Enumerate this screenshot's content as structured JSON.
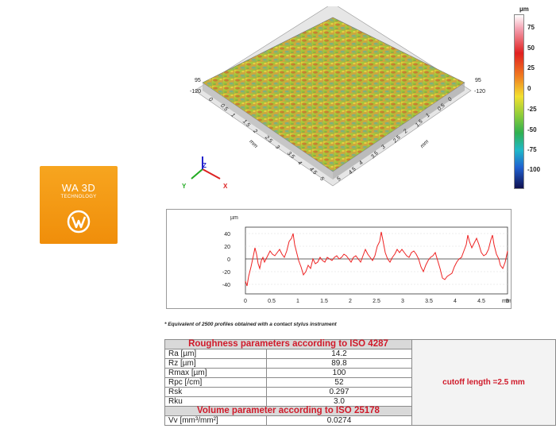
{
  "logo": {
    "line1": "WA 3D",
    "line2": "TECHNOLOGY"
  },
  "surface": {
    "left_z_top": "95",
    "left_z_bottom": "-120",
    "right_z_top": "95",
    "right_z_bottom": "-120",
    "left_ticks": [
      "0",
      "0.5",
      "1",
      "1.5",
      "2",
      "2.5",
      "3",
      "3.5",
      "4",
      "4.5",
      "5"
    ],
    "right_ticks": [
      "5",
      "4.5",
      "4",
      "3.5",
      "3",
      "2.5",
      "2",
      "1.5",
      "1",
      "0.5",
      "0"
    ],
    "left_unit": "mm",
    "right_unit": "mm",
    "axis_x": "X",
    "axis_y": "Y",
    "axis_z": "Z"
  },
  "colorbar": {
    "unit": "µm",
    "labels": [
      "75",
      "50",
      "25",
      "0",
      "-25",
      "-50",
      "-75",
      "-100"
    ]
  },
  "profile": {
    "ylabel": "µm",
    "xunit": "mm",
    "y_ticks": [
      "40",
      "20",
      "0",
      "-20",
      "-40"
    ],
    "x_ticks": [
      "0",
      "0.5",
      "1",
      "1.5",
      "2",
      "2.5",
      "3",
      "3.5",
      "4",
      "4.5",
      "5"
    ]
  },
  "footnote": "* Equivalent of 2500 profiles obtained with a contact stylus instrument",
  "table": {
    "roughness_header": "Roughness parameters according to ISO 4287",
    "rows": [
      {
        "name": "Ra [µm]",
        "value": "14.2"
      },
      {
        "name": "Rz [µm]",
        "value": "89.8"
      },
      {
        "name": "Rmax [µm]",
        "value": "100"
      },
      {
        "name": "Rpc [/cm]",
        "value": "52"
      },
      {
        "name": "Rsk",
        "value": "0.297"
      },
      {
        "name": "Rku",
        "value": "3.0"
      }
    ],
    "volume_header": "Volume parameter according to ISO 25178",
    "vv_name": "Vv [mm³/mm²]",
    "vv_value": "0.0274",
    "cutoff": "cutoff length =2.5 mm"
  },
  "colors": {
    "accent_red": "#d01a2a",
    "logo_orange": "#f59b16",
    "profile_red": "#ee2222"
  }
}
